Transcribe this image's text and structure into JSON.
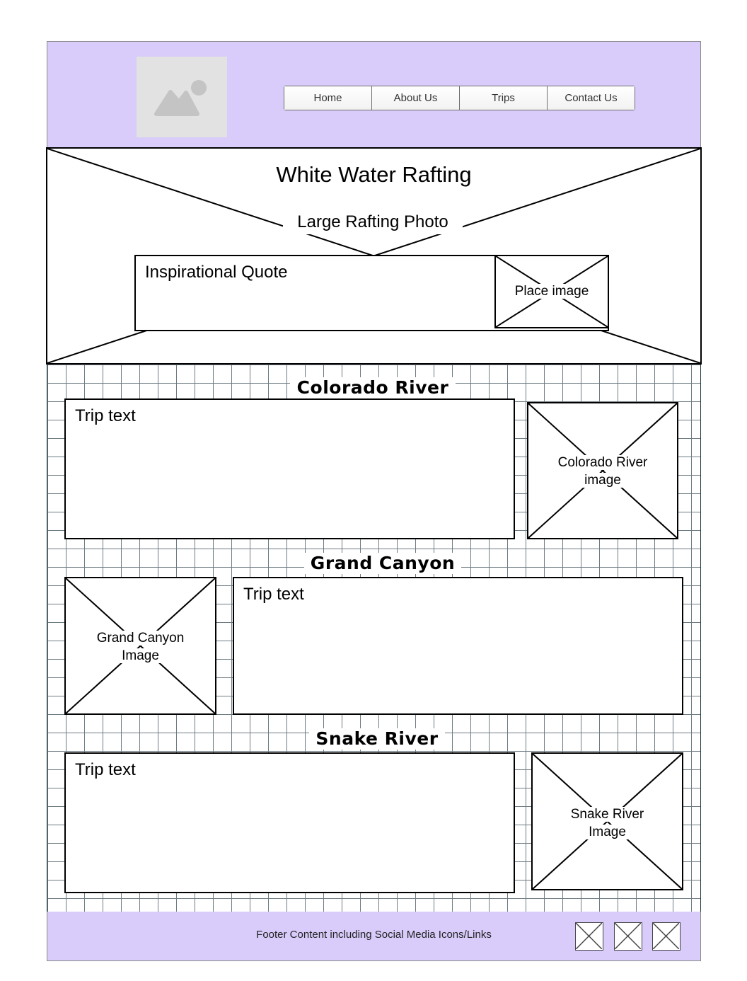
{
  "nav": {
    "items": [
      {
        "label": "Home"
      },
      {
        "label": "About Us"
      },
      {
        "label": "Trips"
      },
      {
        "label": "Contact Us"
      }
    ]
  },
  "hero": {
    "title": "White Water Rafting",
    "photo_label": "Large Rafting Photo",
    "quote_label": "Inspirational Quote",
    "place_image_label": "Place image"
  },
  "sections": [
    {
      "title": "Colorado River",
      "text": "Trip text",
      "image_line1": "Colorado River",
      "image_line2": "image"
    },
    {
      "title": "Grand Canyon",
      "text": "Trip text",
      "image_line1": "Grand Canyon",
      "image_line2": "Image"
    },
    {
      "title": "Snake River",
      "text": "Trip text",
      "image_line1": "Snake River",
      "image_line2": "Image"
    }
  ],
  "footer": {
    "text": "Footer Content including Social Media Icons/Links",
    "social_icons": [
      "social-icon-1",
      "social-icon-2",
      "social-icon-3"
    ]
  },
  "colors": {
    "header_bg": "#d9ccfb",
    "footer_bg": "#d9ccfb",
    "grid_line": "#6d7b82"
  }
}
